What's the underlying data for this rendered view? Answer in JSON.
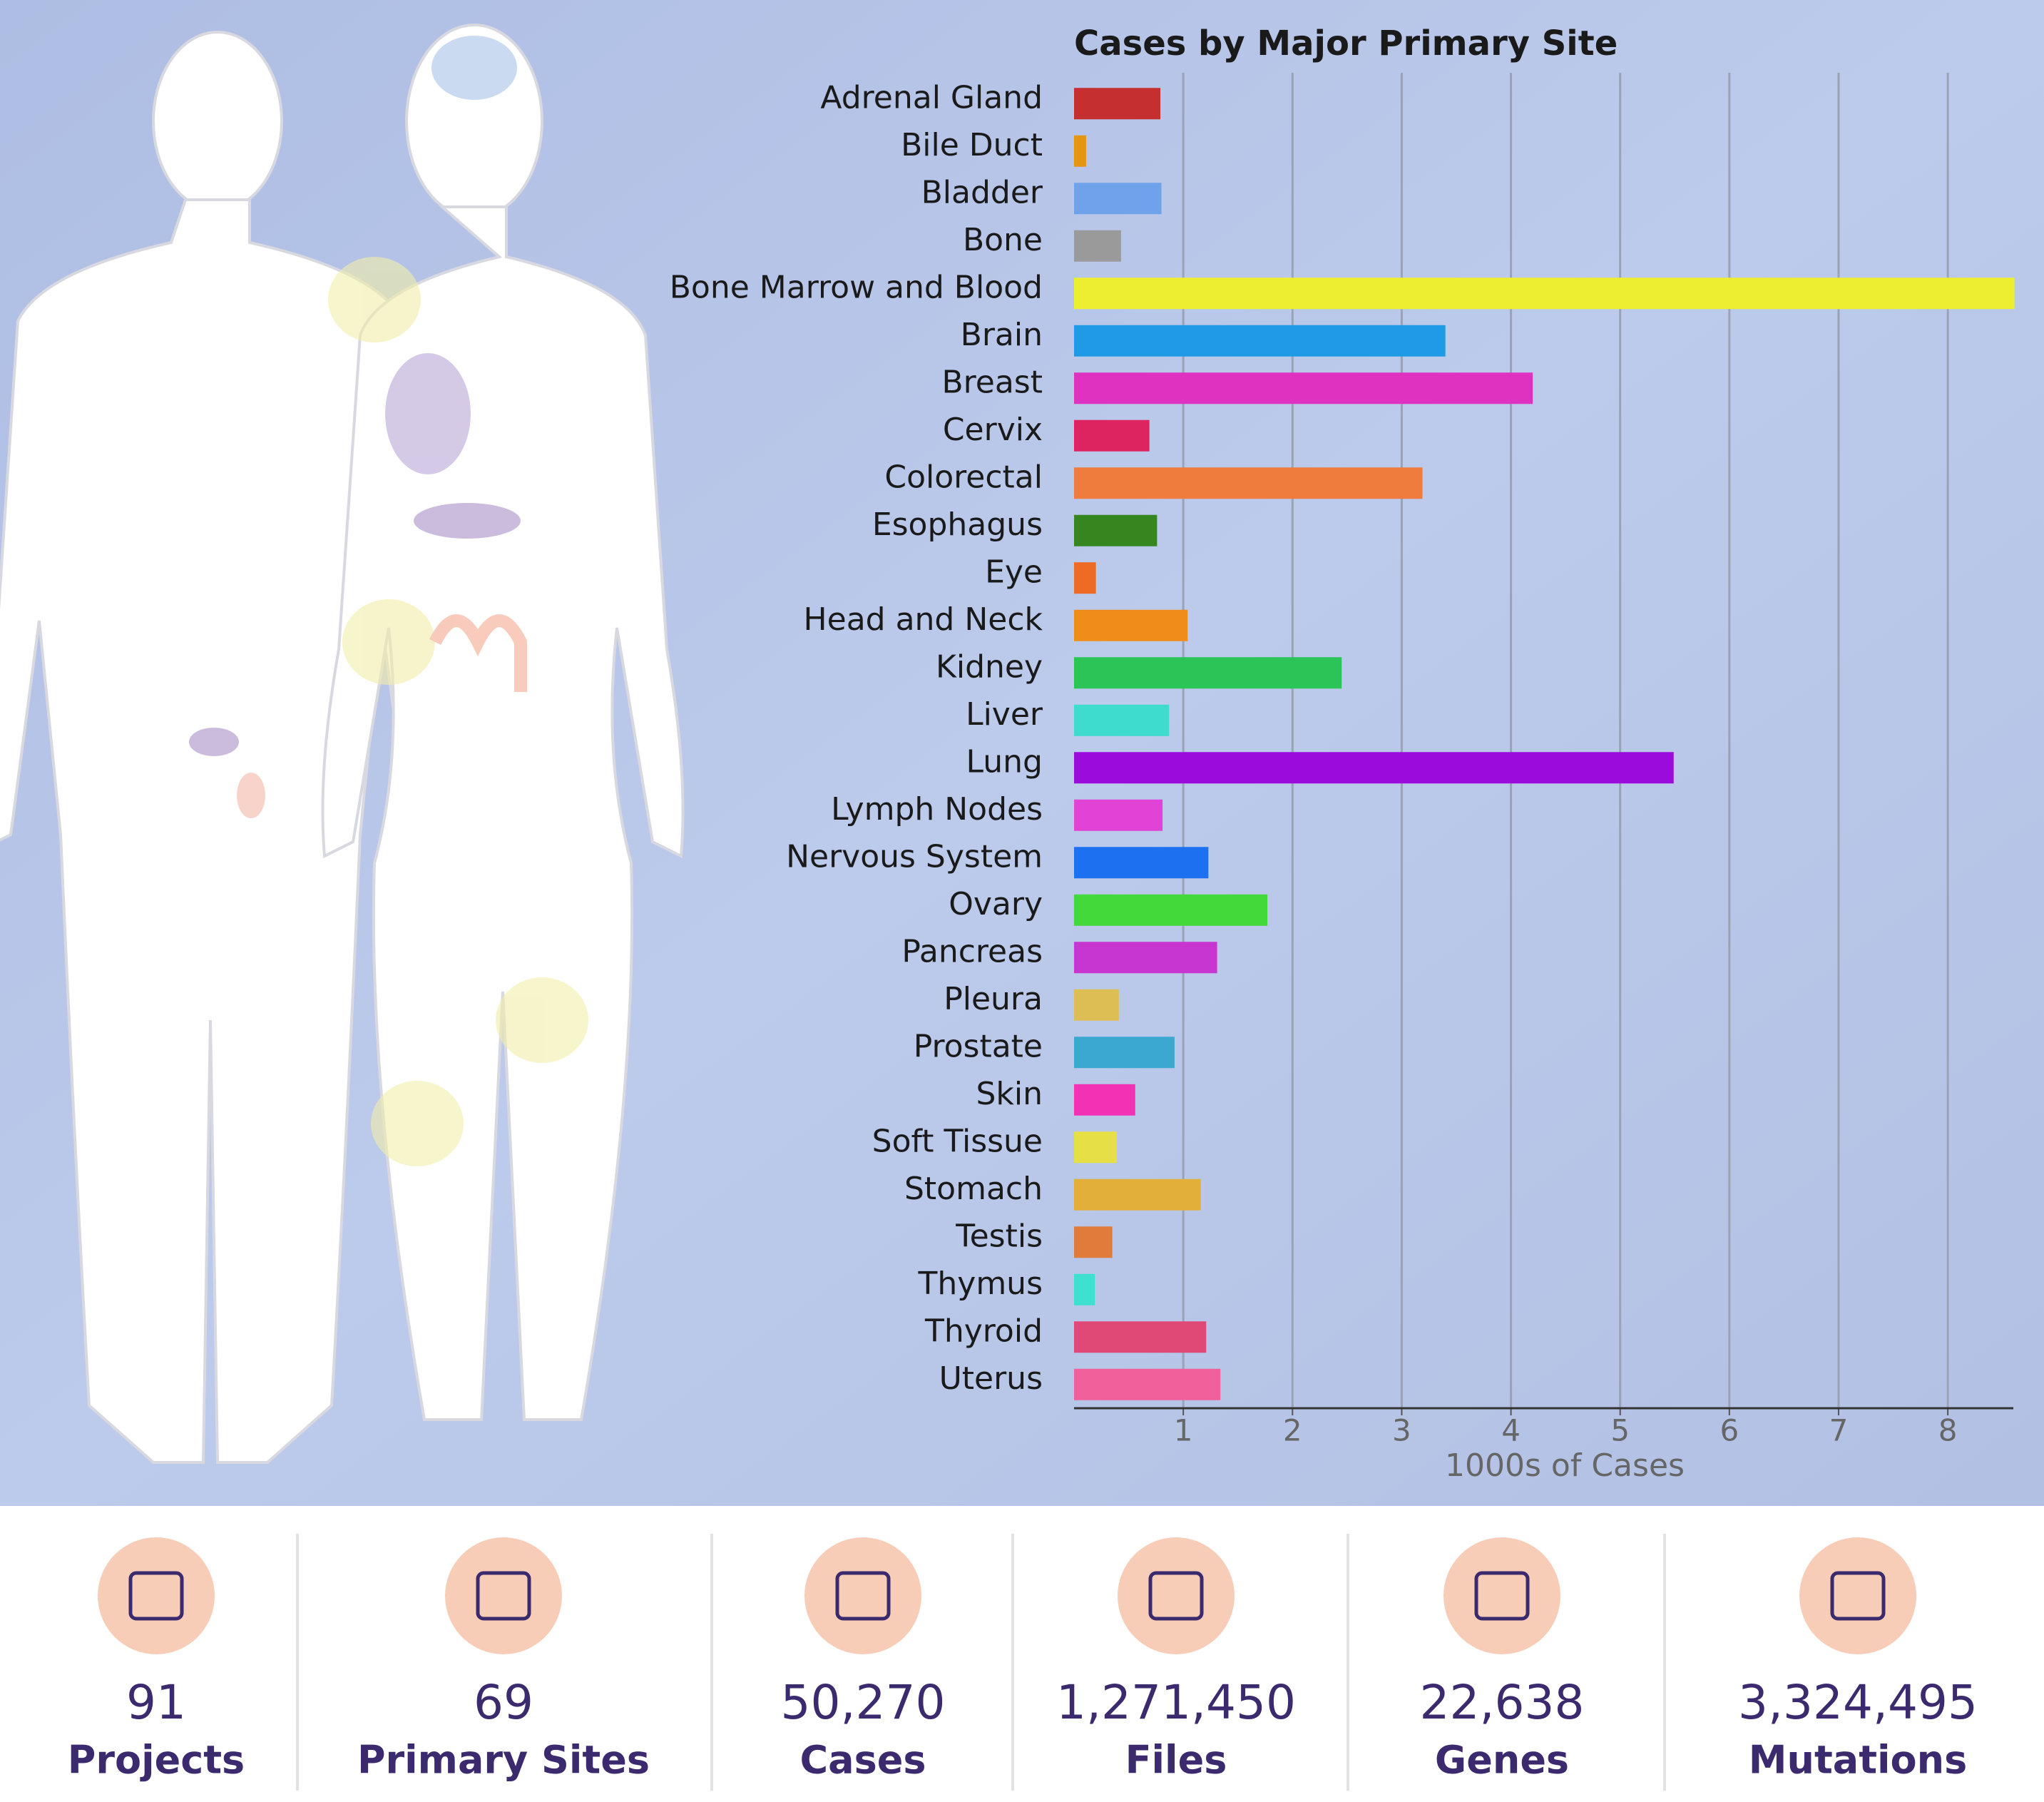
{
  "chart_data": {
    "type": "bar",
    "orientation": "horizontal",
    "title": "Cases by Major Primary Site",
    "xlabel": "1000s of Cases",
    "categories": [
      "Adrenal Gland",
      "Bile Duct",
      "Bladder",
      "Bone",
      "Bone Marrow and Blood",
      "Brain",
      "Breast",
      "Cervix",
      "Colorectal",
      "Esophagus",
      "Eye",
      "Head and Neck",
      "Kidney",
      "Liver",
      "Lung",
      "Lymph Nodes",
      "Nervous System",
      "Ovary",
      "Pancreas",
      "Pleura",
      "Prostate",
      "Skin",
      "Soft Tissue",
      "Stomach",
      "Testis",
      "Thymus",
      "Thyroid",
      "Uterus"
    ],
    "values": [
      0.79,
      0.11,
      0.8,
      0.43,
      8.61,
      3.4,
      4.2,
      0.69,
      3.19,
      0.76,
      0.2,
      1.04,
      2.45,
      0.87,
      5.49,
      0.81,
      1.23,
      1.77,
      1.31,
      0.41,
      0.92,
      0.56,
      0.39,
      1.16,
      0.35,
      0.19,
      1.21,
      1.34
    ],
    "colors": [
      "#c62f2f",
      "#e69512",
      "#6ea3ec",
      "#9a9a9a",
      "#eeee30",
      "#1f9be5",
      "#e032c0",
      "#dd2360",
      "#ef7b3c",
      "#35861f",
      "#ee6b26",
      "#f08c1a",
      "#2bc456",
      "#3edccf",
      "#9b0bdb",
      "#e043d6",
      "#1d70f0",
      "#44d93a",
      "#c836d2",
      "#dcbe55",
      "#3aa8d0",
      "#f232b5",
      "#e6e046",
      "#e2b03a",
      "#e07b3a",
      "#3ee0d0",
      "#e04876",
      "#f0609a"
    ],
    "xlim": [
      0,
      8.6
    ],
    "xticks": [
      1,
      2,
      3,
      4,
      5,
      6,
      7,
      8
    ],
    "grid": true
  },
  "stats": [
    {
      "value": "91",
      "label": "Projects"
    },
    {
      "value": "69",
      "label": "Primary Sites"
    },
    {
      "value": "50,270",
      "label": "Cases"
    },
    {
      "value": "1,271,450",
      "label": "Files"
    },
    {
      "value": "22,638",
      "label": "Genes"
    },
    {
      "value": "3,324,495",
      "label": "Mutations"
    }
  ]
}
